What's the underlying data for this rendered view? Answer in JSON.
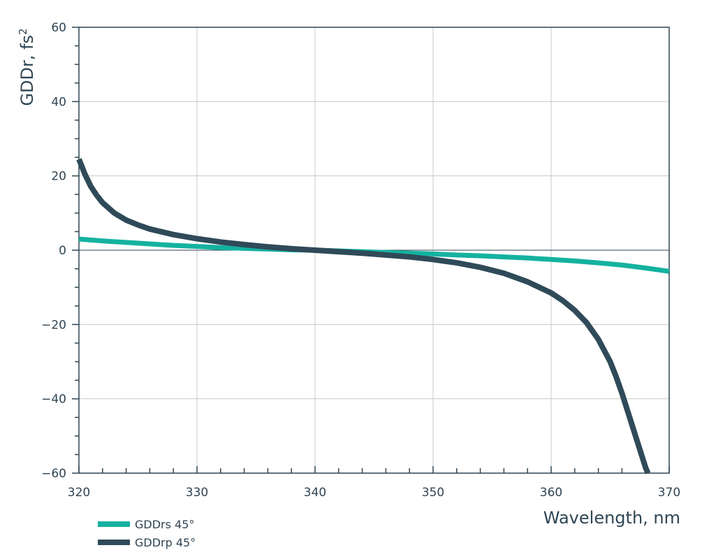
{
  "chart_data": {
    "type": "line",
    "xlabel": "Wavelength, nm",
    "ylabel": "GDDr, fs",
    "ylabel_sup": "2",
    "xlim": [
      320,
      370
    ],
    "ylim": [
      -60,
      60
    ],
    "x_ticks": [
      "320",
      "330",
      "340",
      "350",
      "360",
      "370"
    ],
    "y_ticks": [
      "60",
      "40",
      "20",
      "0",
      "−20",
      "−40",
      "−60"
    ],
    "grid": true,
    "legend_position": "bottom-left",
    "series": [
      {
        "name": "GDDrs 45°",
        "color": "#14b2a0",
        "x": [
          320,
          322,
          324,
          326,
          328,
          330,
          332,
          334,
          336,
          338,
          340,
          342,
          344,
          346,
          348,
          350,
          352,
          354,
          356,
          358,
          360,
          362,
          364,
          366,
          368,
          370
        ],
        "y": [
          3.0,
          2.5,
          2.1,
          1.7,
          1.3,
          1.0,
          0.7,
          0.5,
          0.3,
          0.1,
          0.0,
          -0.2,
          -0.4,
          -0.6,
          -0.8,
          -1.0,
          -1.3,
          -1.5,
          -1.8,
          -2.1,
          -2.5,
          -2.9,
          -3.4,
          -4.0,
          -4.8,
          -5.7
        ]
      },
      {
        "name": "GDDrp 45°",
        "color": "#2f4a58",
        "x": [
          320,
          320.5,
          321,
          321.5,
          322,
          323,
          324,
          325,
          326,
          328,
          330,
          332,
          334,
          336,
          338,
          340,
          342,
          344,
          346,
          348,
          350,
          352,
          354,
          356,
          358,
          360,
          361,
          362,
          363,
          364,
          365,
          365.5,
          366,
          366.5,
          367,
          367.5,
          368,
          368.2
        ],
        "y": [
          24.5,
          20.5,
          17.2,
          14.8,
          12.8,
          10.0,
          8.1,
          6.8,
          5.7,
          4.2,
          3.1,
          2.2,
          1.5,
          0.9,
          0.4,
          0.0,
          -0.4,
          -0.8,
          -1.3,
          -1.8,
          -2.5,
          -3.4,
          -4.6,
          -6.2,
          -8.5,
          -11.5,
          -13.6,
          -16.2,
          -19.5,
          -24.0,
          -30.0,
          -34.0,
          -38.5,
          -43.5,
          -48.5,
          -53.5,
          -58.5,
          -60.0
        ]
      }
    ]
  }
}
